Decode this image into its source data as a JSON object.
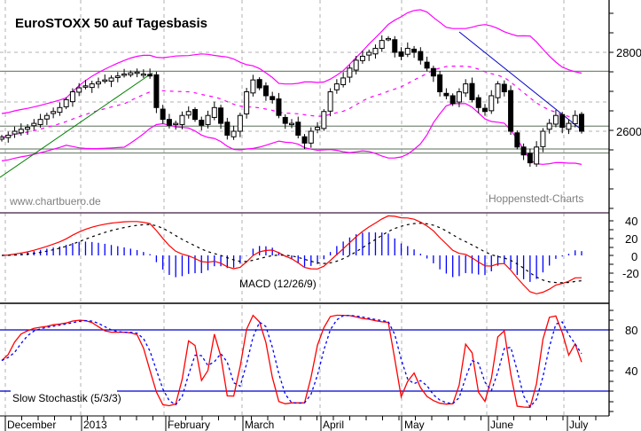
{
  "chart_data": [
    {
      "type": "candlestick",
      "title": "EuroSTOXX 50 auf Tagesbasis",
      "watermark_left": "www.chartbuero.de",
      "watermark_right": "Hoppenstedt-Charts",
      "ylabel": "",
      "y_ticks": [
        2600,
        2800
      ],
      "ylim": [
        2400,
        2930
      ],
      "x_months": [
        "December",
        "2013",
        "February",
        "March",
        "April",
        "May",
        "June",
        "July"
      ],
      "horizontal_levels": [
        2752,
        2613,
        2555,
        2545
      ],
      "overlays": [
        "Bollinger Bands (magenta)",
        "Moving average (magenta dashed)",
        "Uptrend line (green)",
        "Downtrend line (blue)"
      ],
      "close_approx": [
        2585,
        2590,
        2600,
        2605,
        2610,
        2620,
        2630,
        2640,
        2650,
        2660,
        2680,
        2700,
        2710,
        2715,
        2720,
        2725,
        2730,
        2735,
        2740,
        2745,
        2748,
        2750,
        2745,
        2740,
        2660,
        2630,
        2615,
        2620,
        2640,
        2650,
        2630,
        2615,
        2640,
        2660,
        2620,
        2590,
        2600,
        2640,
        2700,
        2730,
        2710,
        2690,
        2680,
        2640,
        2620,
        2620,
        2590,
        2570,
        2600,
        2610,
        2650,
        2700,
        2720,
        2735,
        2760,
        2780,
        2790,
        2800,
        2810,
        2830,
        2835,
        2800,
        2790,
        2810,
        2800,
        2780,
        2760,
        2740,
        2700,
        2690,
        2670,
        2700,
        2720,
        2680,
        2660,
        2650,
        2690,
        2720,
        2700,
        2600,
        2560,
        2540,
        2520,
        2560,
        2600,
        2620,
        2640,
        2610,
        2620,
        2640,
        2600
      ],
      "color_up": "#ffffff",
      "color_down": "#000000",
      "color_band": "#ff00ff",
      "color_trend_up": "#008000",
      "color_trend_down": "#0000cc"
    },
    {
      "type": "line",
      "title": "MACD (12/26/9)",
      "y_ticks": [
        40,
        20,
        0,
        -20
      ],
      "series": [
        {
          "name": "MACD",
          "color": "#ff0000"
        },
        {
          "name": "Signal",
          "color": "#000000",
          "style": "dashed"
        },
        {
          "name": "Histogram",
          "color": "#0000ff",
          "style": "bars"
        }
      ]
    },
    {
      "type": "line",
      "title": "Slow Stochastik (5/3/3)",
      "y_ticks": [
        80,
        40
      ],
      "reference_lines": [
        80,
        20
      ],
      "series": [
        {
          "name": "%K",
          "color": "#ff0000"
        },
        {
          "name": "%D",
          "color": "#0000ff",
          "style": "dashed"
        }
      ]
    }
  ],
  "price_panel": {
    "title": "EuroSTOXX 50 auf Tagesbasis",
    "watermark_left": "www.chartbuero.de",
    "watermark_right": "Hoppenstedt-Charts",
    "y_labels": [
      "2800",
      "2600"
    ]
  },
  "macd_panel": {
    "label": "MACD (12/26/9)",
    "y_labels": [
      "40",
      "20",
      "0",
      "-20"
    ]
  },
  "stoch_panel": {
    "label": "Slow Stochastik (5/3/3)",
    "y_labels": [
      "80",
      "40"
    ]
  },
  "x_axis": {
    "months": [
      "December",
      "2013",
      "February",
      "March",
      "April",
      "May",
      "June",
      "July"
    ]
  }
}
